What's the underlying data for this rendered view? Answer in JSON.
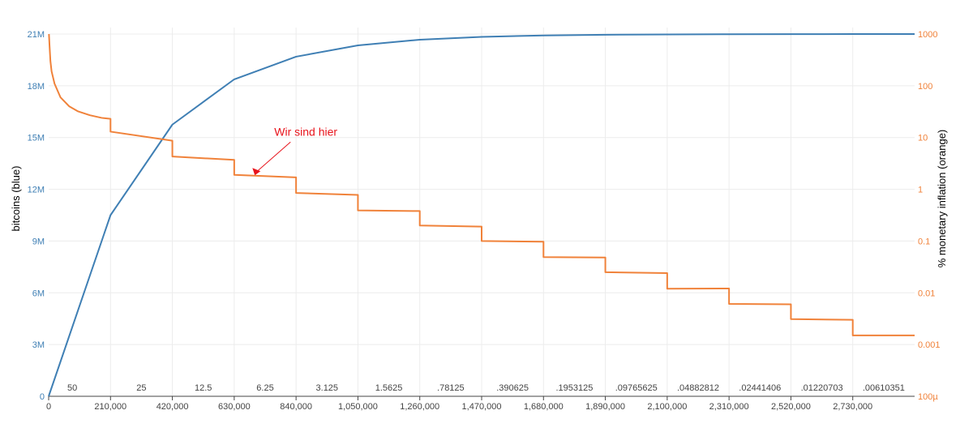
{
  "chart_data": {
    "type": "line",
    "colors": {
      "bitcoins": "#3f7fb4",
      "inflation": "#f0823a",
      "annotation": "#e8141c",
      "grid": "#ececec"
    },
    "xlabel": "",
    "ylabel": "bitcoins (blue)",
    "y2label": "% monetary inflation (orange)",
    "xlim": [
      0,
      2940000
    ],
    "ylim": [
      0,
      21000000
    ],
    "y2lim": [
      0.0001,
      1000
    ],
    "y2scale": "log",
    "x_ticks": [
      "0",
      "210,000",
      "420,000",
      "630,000",
      "840,000",
      "1,050,000",
      "1,260,000",
      "1,470,000",
      "1,680,000",
      "1,890,000",
      "2,100,000",
      "2,310,000",
      "2,520,000",
      "2,730,000"
    ],
    "y_ticks": [
      "0",
      "3M",
      "6M",
      "9M",
      "12M",
      "15M",
      "18M",
      "21M"
    ],
    "y2_ticks": [
      "100µ",
      "0.001",
      "0.01",
      "0.1",
      "1",
      "10",
      "100",
      "1000"
    ],
    "block_rewards": [
      "50",
      "25",
      "12.5",
      "6.25",
      "3.125",
      "1.5625",
      ".78125",
      ".390625",
      ".1953125",
      ".09765625",
      ".04882812",
      ".02441406",
      ".01220703",
      ".00610351"
    ],
    "series": [
      {
        "name": "bitcoins (blue)",
        "axis": "left",
        "x": [
          0,
          210000,
          420000,
          630000,
          840000,
          1050000,
          1260000,
          1470000,
          1680000,
          1890000,
          2100000,
          2310000,
          2520000,
          2730000,
          2940000
        ],
        "values": [
          0,
          10500000,
          15750000,
          18375000,
          19687500,
          20343750,
          20671875,
          20835938,
          20917969,
          20958984,
          20979492,
          20989746,
          20994873,
          20997437,
          20998718
        ]
      },
      {
        "name": "% monetary inflation (orange)",
        "axis": "right",
        "x": [
          1000,
          3000,
          6000,
          10000,
          20000,
          40000,
          70000,
          100000,
          140000,
          180000,
          209999,
          210000,
          419999,
          420000,
          629999,
          630000,
          839999,
          840000,
          1049999,
          1050000,
          1259999,
          1260000,
          1469999,
          1470000,
          1679999,
          1680000,
          1889999,
          1890000,
          2099999,
          2100000,
          2309999,
          2310000,
          2519999,
          2520000,
          2729999,
          2730000,
          2940000
        ],
        "values": [
          1000,
          600,
          300,
          190,
          110,
          60,
          40,
          32,
          27,
          24,
          23,
          13,
          8.7,
          4.3,
          3.7,
          1.9,
          1.7,
          0.85,
          0.78,
          0.39,
          0.38,
          0.2,
          0.19,
          0.1,
          0.097,
          0.049,
          0.048,
          0.025,
          0.024,
          0.012,
          0.0121,
          0.0061,
          0.006,
          0.0031,
          0.003,
          0.0015,
          0.0015
        ]
      }
    ],
    "annotation": {
      "text": "Wir sind hier",
      "x": 700000,
      "y2": 1.8
    }
  }
}
